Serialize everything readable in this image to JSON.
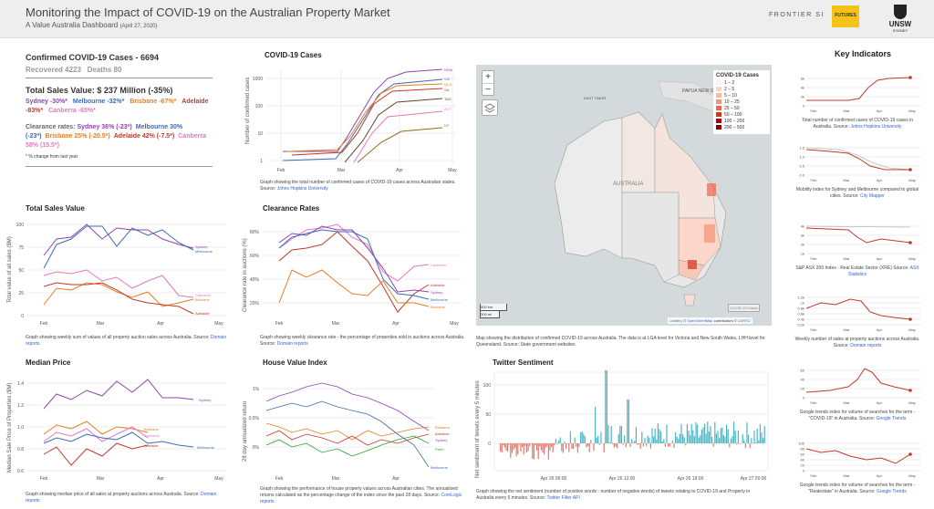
{
  "header": {
    "title": "Monitoring the Impact of COVID-19 on the Australian Property Market",
    "subtitle": "A Value Australia Dashboard",
    "date": "(April 27, 2020)",
    "logos": [
      "FRONTIER SI",
      "FUTURES",
      "UNSW",
      "SYDNEY"
    ]
  },
  "summary": {
    "cases_title": "Confirmed COVID-19 Cases - 6694",
    "recovered_deaths": "Recovered 4223   Deaths 80",
    "sales_title": "Total Sales Value: $ 237 Million (-35%)",
    "sales_cities": [
      {
        "text": "Sydney -30%*",
        "color": "#8e44ad"
      },
      {
        "text": "Melbourne -32%*",
        "color": "#3d6bb3"
      },
      {
        "text": "Brisbane -67%*",
        "color": "#e67e22"
      },
      {
        "text": "Adelaide -83%*",
        "color": "#c0392b"
      },
      {
        "text": "Canberra -65%*",
        "color": "#e377c2"
      }
    ],
    "clearance_label": "Clearance rates:",
    "clearance_cities": [
      {
        "text": "Sydney 36% (-23*)",
        "color": "#8e44ad"
      },
      {
        "text": "Melbourne 30% (-23*)",
        "color": "#3d6bb3"
      },
      {
        "text": "Brisbane 25% (-20.5*)",
        "color": "#e67e22"
      },
      {
        "text": "Adelaide 42% (-7.5*)",
        "color": "#c0392b"
      },
      {
        "text": "Canberra 58% (15.5*)",
        "color": "#e377c2"
      }
    ],
    "footnote": "* % change from last year"
  },
  "colors": {
    "sydney": "#8e44ad",
    "melbourne": "#3d6bb3",
    "brisbane": "#e67e22",
    "adelaide": "#c0392b",
    "canberra": "#e377c2",
    "perth": "#2ca02c"
  },
  "covid": {
    "title": "COVID-19 Cases",
    "ylabel": "Number of confirmed cases",
    "yticks": [
      "1",
      "10",
      "100",
      "1000"
    ],
    "xticks": [
      "Feb",
      "Mar",
      "Apr",
      "May"
    ],
    "states": [
      "NSW",
      "VIC",
      "QLD",
      "SA",
      "TAS",
      "ACT",
      "NT"
    ],
    "desc": "Graph showing the total number of confirmed cases of COVID-19 cases across Australian states.",
    "source_label": "Source:",
    "source": "Johns Hopkins University"
  },
  "sales": {
    "title": "Total Sales Value",
    "ylabel": "Total value of all sales ($M)",
    "yticks": [
      "0",
      "25",
      "50",
      "75",
      "100"
    ],
    "xticks": [
      "Feb",
      "Mar",
      "Apr",
      "May"
    ],
    "labels": [
      "Sydney",
      "Melbourne",
      "Canberra",
      "Brisbane",
      "Adelaide"
    ],
    "desc": "Graph showing weekly sum of values of all property auction sales across Australia. Source:",
    "source": "Domain reports"
  },
  "clearance": {
    "title": "Clearance Rates",
    "ylabel": "Clearance rate in auctions (%)",
    "yticks": [
      "20%",
      "40%",
      "60%",
      "80%"
    ],
    "xticks": [
      "Feb",
      "Mar",
      "Apr",
      "May"
    ],
    "labels": [
      "Canberra",
      "Adelaide",
      "Sydney",
      "Melbourne",
      "Brisbane"
    ],
    "desc": "Graph showing weekly clearance rate - the percentage of properties sold in auctions across Australia.",
    "source_label": "Source:",
    "source": "Domain reports"
  },
  "map": {
    "legend_title": "COVID-19 Cases",
    "legend": [
      {
        "label": "1 – 2",
        "color": "#fef0ec"
      },
      {
        "label": "2 – 5",
        "color": "#fdd5c8"
      },
      {
        "label": "5 – 10",
        "color": "#fcb9a3"
      },
      {
        "label": "10 – 25",
        "color": "#f99276"
      },
      {
        "label": "25 – 50",
        "color": "#f0624c"
      },
      {
        "label": "50 – 100",
        "color": "#d7301f"
      },
      {
        "label": "100 – 200",
        "color": "#b30000"
      },
      {
        "label": "200 – 500",
        "color": "#7f0000"
      }
    ],
    "labels": [
      "PAPUA NEW GUINEA",
      "EAST TIMOR",
      "AUSTRALIA"
    ],
    "scale_km": "500 km",
    "scale_mi": "300 mi",
    "watermark": "COVID-19 Cases",
    "attr_leaflet": "Leaflet",
    "attr_sep": " | © ",
    "attr_osm": "OpenStreetMap",
    "attr_contrib": " contributors © ",
    "attr_carto": "CARTO",
    "zoom_in": "+",
    "zoom_out": "−",
    "desc": "Map showing the distribution of confirmed COVID-19 across Australia. The data is at LGA level for Victoria and New South Wales, LHH level for Queensland. Source: State government websites"
  },
  "median": {
    "title": "Median Price",
    "ylabel": "Median Sale Price of Properties ($M)",
    "yticks": [
      "0.6",
      "0.8",
      "1.0",
      "1.2",
      "1.4"
    ],
    "xticks": [
      "Feb",
      "Mar",
      "Apr",
      "May"
    ],
    "labels": [
      "Sydney",
      "Brisbane",
      "Canberra",
      "Adelaide",
      "Melbourne"
    ],
    "desc": "Graph showing median price of all sales at property auctions across Australia. Source:",
    "source": "Domain reports"
  },
  "hvi": {
    "title": "House Value Index",
    "ylabel": "28 day annualized return",
    "yticks": [
      "0%",
      "0.5%",
      "1%"
    ],
    "xticks": [
      "Feb",
      "Mar",
      "Apr"
    ],
    "labels": [
      "Brisbane",
      "Adelaide",
      "Sydney",
      "Perth",
      "Melbourne"
    ],
    "desc": "Graph showing the performance of house property values across Australian cities. The annualised returns calculated as the percentage change of the index since the past 28 days. Source:",
    "source": "CoreLogic reports"
  },
  "twitter": {
    "title": "Twitter Sentiment",
    "ylabel": "Net sentiment of tweets every 5 minutes",
    "yticks": [
      "0",
      "50",
      "100"
    ],
    "xticks": [
      "Apr 26 06:00",
      "Apr 26 12:00",
      "Apr 26 18:00",
      "Apr 27 00:00"
    ],
    "desc": "Graph showing the net sentiment (number of positive words - number of negative words) of tweets relating to COVID-19 and Property in Australia every 5 minutes. Source:",
    "source": "Twitter Filter API"
  },
  "key_indicators": {
    "title": "Key Indicators",
    "items": [
      {
        "caption": "Total number of confirmed cases of COVID-19 cases in Australia. Source:",
        "source": "Johns Hopkins University",
        "yticks": [
          "0",
          "2k",
          "4k",
          "6k"
        ],
        "xticks": [
          "Feb",
          "Mar",
          "Apr",
          "May"
        ]
      },
      {
        "caption": "Mobility index for Sydney and Melbourne compared to global cities. Source:",
        "source": "City Mapper",
        "yticks": [
          "0.0",
          "0.5",
          "1.0",
          "1.5"
        ],
        "xticks": [
          "Feb",
          "Mar",
          "Apr",
          "May"
        ]
      },
      {
        "caption": "S&P ASX 200 Index - Real Estate Sector (XRE) Source:",
        "source": "ASX Statistics",
        "yticks": [
          "1k",
          "2k",
          "3k",
          "4k"
        ],
        "xticks": [
          "Feb",
          "Mar",
          "Apr",
          "May"
        ]
      },
      {
        "caption": "Weekly number of sales at property auctions across Australia. Source:",
        "source": "Domain reports",
        "yticks": [
          "0.2k",
          "0.4k",
          "0.6k",
          "0.8k",
          "1k",
          "1.2k"
        ],
        "xticks": [
          "Feb",
          "Mar",
          "Apr",
          "May"
        ]
      },
      {
        "caption": "Google trends index for volume of searches for the term - \"COVID-19\" in Australia. Source:",
        "source": "Google Trends",
        "yticks": [
          "0",
          "20",
          "40",
          "60"
        ],
        "xticks": [
          "Feb",
          "Mar",
          "Apr",
          "May"
        ]
      },
      {
        "caption": "Google trends index for volume of searches for the term - \"Realestate\" in Australia. Source:",
        "source": "Google Trends",
        "yticks": [
          "0",
          "20",
          "40",
          "60",
          "80",
          "100"
        ],
        "xticks": [
          "Feb",
          "Mar",
          "Apr",
          "May"
        ]
      }
    ]
  }
}
